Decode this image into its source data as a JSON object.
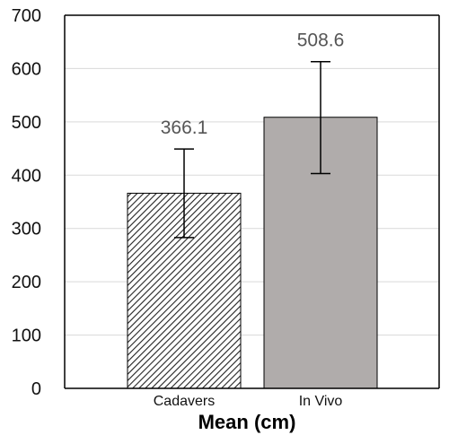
{
  "chart_data": {
    "type": "bar",
    "categories": [
      "Cadavers",
      "In Vivo"
    ],
    "values": [
      366.1,
      508.6
    ],
    "error_low": [
      283,
      403
    ],
    "error_high": [
      449,
      613
    ],
    "data_labels": [
      "366.1",
      "508.6"
    ],
    "title": "",
    "xlabel": "Mean (cm)",
    "ylabel": "",
    "ylim": [
      0,
      700
    ],
    "yticks": [
      0,
      100,
      200,
      300,
      400,
      500,
      600,
      700
    ],
    "ytick_labels": [
      "0",
      "100",
      "200",
      "300",
      "400",
      "500",
      "600",
      "700"
    ],
    "grid": true,
    "legend": "none",
    "bar_styles": [
      "hatched",
      "solid"
    ],
    "colors": {
      "bar_fill": "#b0acab",
      "hatch": "#222222",
      "grid": "#d9d9d9",
      "axis": "#000000",
      "data_label": "#555555"
    }
  }
}
